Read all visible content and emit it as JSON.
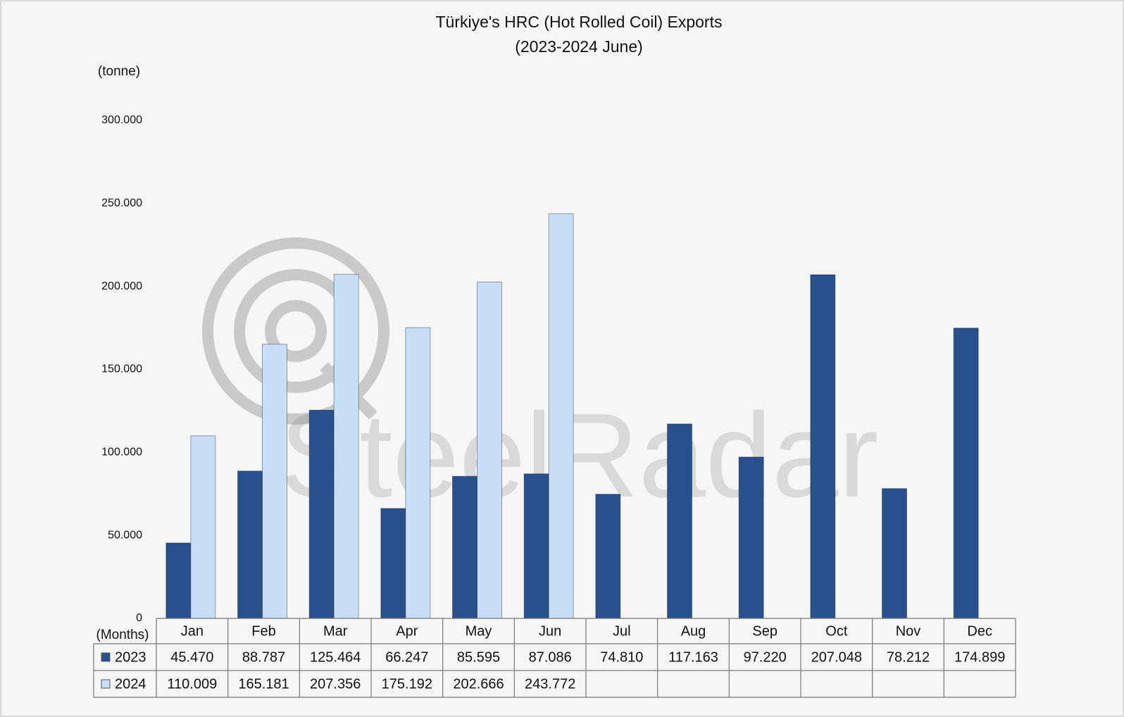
{
  "chart_data": {
    "type": "bar",
    "title": "Türkiye's HRC (Hot Rolled Coil) Exports",
    "subtitle": "(2023-2024 June)",
    "y_label": "(tonne)",
    "x_label": "(Months)",
    "watermark": "SteelRadar",
    "categories": [
      "Jan",
      "Feb",
      "Mar",
      "Apr",
      "May",
      "Jun",
      "Jul",
      "Aug",
      "Sep",
      "Oct",
      "Nov",
      "Dec"
    ],
    "series": [
      {
        "name": "2023",
        "color": "#28508c",
        "values": [
          45470,
          88787,
          125464,
          66247,
          85595,
          87086,
          74810,
          117163,
          97220,
          207048,
          78212,
          174899
        ],
        "value_labels": [
          "45.470",
          "88.787",
          "125.464",
          "66.247",
          "85.595",
          "87.086",
          "74.810",
          "117.163",
          "97.220",
          "207.048",
          "78.212",
          "174.899"
        ]
      },
      {
        "name": "2024",
        "color": "#c8ddf6",
        "values": [
          110009,
          165181,
          207356,
          175192,
          202666,
          243772,
          null,
          null,
          null,
          null,
          null,
          null
        ],
        "value_labels": [
          "110.009",
          "165.181",
          "207.356",
          "175.192",
          "202.666",
          "243.772",
          null,
          null,
          null,
          null,
          null,
          null
        ]
      }
    ],
    "ylim": [
      0,
      300000
    ],
    "yticks": [
      0,
      {
        "value": 50000,
        "label": "50.000"
      },
      {
        "value": 100000,
        "label": "100.000"
      },
      {
        "value": 150000,
        "label": "150.000"
      },
      {
        "value": 200000,
        "label": "200.000"
      },
      {
        "value": 250000,
        "label": "250.000"
      },
      {
        "value": 300000,
        "label": "300.000"
      }
    ],
    "grid": false,
    "data_table": true
  }
}
